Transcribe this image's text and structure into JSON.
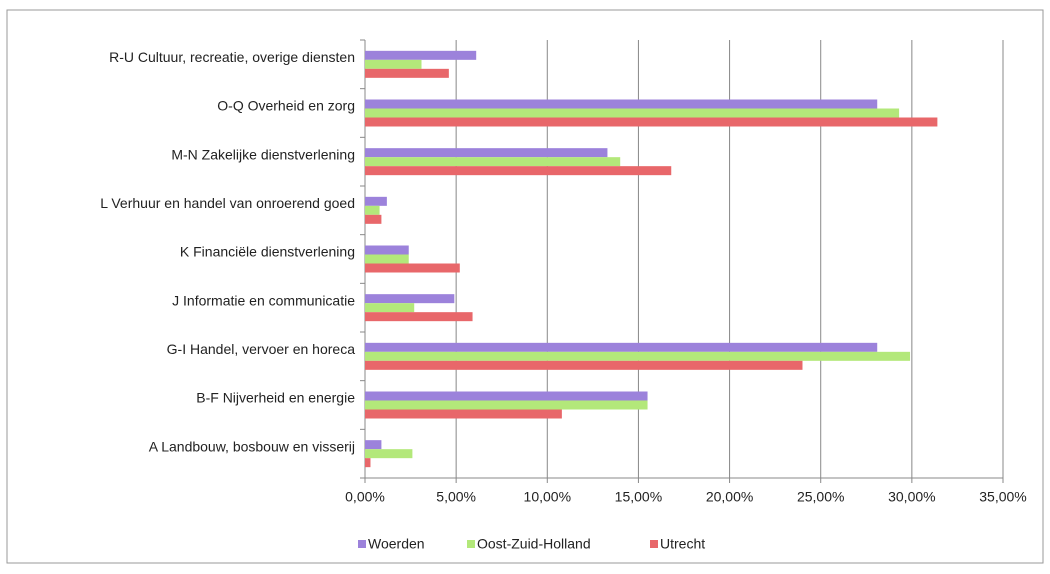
{
  "chart_data": {
    "type": "bar",
    "orientation": "horizontal",
    "categories": [
      "R-U Cultuur, recreatie, overige diensten",
      "O-Q Overheid en zorg",
      "M-N Zakelijke dienstverlening",
      "L Verhuur en handel van onroerend goed",
      "K Financiële dienstverlening",
      "J Informatie en communicatie",
      "G-I Handel, vervoer en horeca",
      "B-F Nijverheid en energie",
      "A Landbouw, bosbouw en visserij"
    ],
    "series": [
      {
        "name": "Woerden",
        "color": "#9c82db",
        "values": [
          6.1,
          28.1,
          13.3,
          1.2,
          2.4,
          4.9,
          28.1,
          15.5,
          0.9
        ]
      },
      {
        "name": "Oost-Zuid-Holland",
        "color": "#b3e87a",
        "values": [
          3.1,
          29.3,
          14.0,
          0.8,
          2.4,
          2.7,
          29.9,
          15.5,
          2.6
        ]
      },
      {
        "name": "Utrecht",
        "color": "#e8676a",
        "values": [
          4.6,
          31.4,
          16.8,
          0.9,
          5.2,
          5.9,
          24.0,
          10.8,
          0.3
        ]
      }
    ],
    "xlim": [
      0,
      35
    ],
    "xticks": [
      {
        "value": 0,
        "label": "0,00%"
      },
      {
        "value": 5,
        "label": "5,00%"
      },
      {
        "value": 10,
        "label": "10,00%"
      },
      {
        "value": 15,
        "label": "15,00%"
      },
      {
        "value": 20,
        "label": "20,00%"
      },
      {
        "value": 25,
        "label": "25,00%"
      },
      {
        "value": 30,
        "label": "30,00%"
      },
      {
        "value": 35,
        "label": "35,00%"
      }
    ],
    "grid": true,
    "legend": "bottom"
  }
}
